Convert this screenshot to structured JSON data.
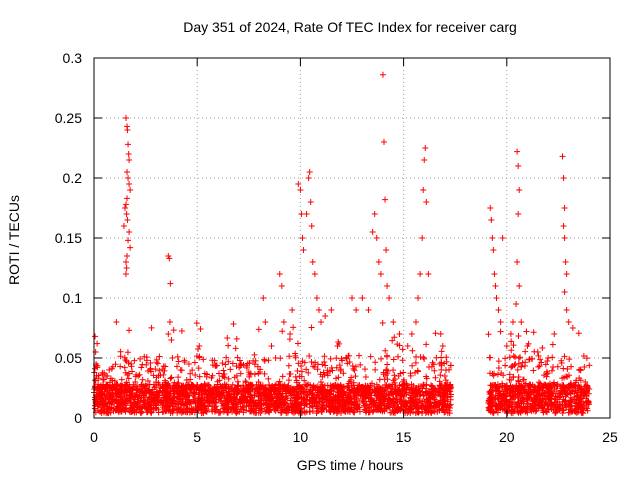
{
  "chart_data": {
    "type": "scatter",
    "title": "Day 351 of 2024, Rate Of TEC Index for receiver carg",
    "xlabel": "GPS time / hours",
    "ylabel": "ROTI / TECUs",
    "xlim": [
      0,
      25
    ],
    "ylim": [
      0,
      0.3
    ],
    "xticks": [
      0,
      5,
      10,
      15,
      20,
      25
    ],
    "xtick_labels": [
      "0",
      "5",
      "10",
      "15",
      "20",
      "25"
    ],
    "yticks": [
      0,
      0.05,
      0.1,
      0.15,
      0.2,
      0.25,
      0.3
    ],
    "ytick_labels": [
      "0",
      "0.05",
      "0.1",
      "0.15",
      "0.2",
      "0.25",
      "0.3"
    ],
    "grid": true,
    "marker": "+",
    "color": "#ff0000",
    "series": [
      {
        "name": "ROTI",
        "points": [
          [
            0.05,
            0.068
          ],
          [
            0.08,
            0.055
          ],
          [
            0.1,
            0.045
          ],
          [
            0.12,
            0.035
          ],
          [
            0.15,
            0.062
          ],
          [
            0.2,
            0.028
          ],
          [
            0.3,
            0.02
          ],
          [
            0.4,
            0.015
          ],
          [
            1.55,
            0.25
          ],
          [
            1.6,
            0.243
          ],
          [
            1.62,
            0.24
          ],
          [
            1.65,
            0.228
          ],
          [
            1.68,
            0.22
          ],
          [
            1.7,
            0.215
          ],
          [
            1.6,
            0.205
          ],
          [
            1.65,
            0.2
          ],
          [
            1.7,
            0.195
          ],
          [
            1.75,
            0.19
          ],
          [
            1.6,
            0.183
          ],
          [
            1.55,
            0.178
          ],
          [
            1.5,
            0.175
          ],
          [
            1.58,
            0.17
          ],
          [
            1.62,
            0.165
          ],
          [
            1.45,
            0.16
          ],
          [
            1.7,
            0.155
          ],
          [
            1.65,
            0.148
          ],
          [
            1.75,
            0.142
          ],
          [
            1.6,
            0.135
          ],
          [
            1.55,
            0.13
          ],
          [
            1.58,
            0.125
          ],
          [
            1.55,
            0.12
          ],
          [
            1.7,
            0.073
          ],
          [
            1.8,
            0.045
          ],
          [
            2.0,
            0.03
          ],
          [
            3.6,
            0.135
          ],
          [
            3.65,
            0.133
          ],
          [
            3.7,
            0.112
          ],
          [
            3.68,
            0.08
          ],
          [
            3.6,
            0.07
          ],
          [
            3.75,
            0.065
          ],
          [
            3.8,
            0.05
          ],
          [
            4.2,
            0.04
          ],
          [
            4.6,
            0.045
          ],
          [
            5.1,
            0.06
          ],
          [
            8.2,
            0.1
          ],
          [
            8.3,
            0.08
          ],
          [
            8.6,
            0.06
          ],
          [
            8.8,
            0.05
          ],
          [
            9.0,
            0.12
          ],
          [
            9.1,
            0.11
          ],
          [
            9.2,
            0.08
          ],
          [
            9.5,
            0.07
          ],
          [
            9.6,
            0.09
          ],
          [
            9.9,
            0.195
          ],
          [
            10.0,
            0.19
          ],
          [
            10.05,
            0.17
          ],
          [
            10.1,
            0.15
          ],
          [
            10.15,
            0.14
          ],
          [
            10.3,
            0.17
          ],
          [
            10.4,
            0.2
          ],
          [
            10.45,
            0.205
          ],
          [
            10.5,
            0.18
          ],
          [
            10.55,
            0.16
          ],
          [
            10.6,
            0.13
          ],
          [
            10.7,
            0.12
          ],
          [
            10.8,
            0.1
          ],
          [
            10.9,
            0.09
          ],
          [
            11.0,
            0.08
          ],
          [
            11.2,
            0.085
          ],
          [
            11.5,
            0.09
          ],
          [
            11.8,
            0.06
          ],
          [
            12.5,
            0.1
          ],
          [
            12.7,
            0.09
          ],
          [
            13.0,
            0.1
          ],
          [
            13.3,
            0.09
          ],
          [
            13.5,
            0.155
          ],
          [
            13.6,
            0.17
          ],
          [
            13.7,
            0.15
          ],
          [
            13.8,
            0.13
          ],
          [
            13.9,
            0.12
          ],
          [
            14.0,
            0.286
          ],
          [
            14.05,
            0.23
          ],
          [
            14.1,
            0.182
          ],
          [
            14.15,
            0.14
          ],
          [
            14.2,
            0.11
          ],
          [
            14.3,
            0.1
          ],
          [
            14.5,
            0.08
          ],
          [
            14.8,
            0.07
          ],
          [
            15.2,
            0.06
          ],
          [
            15.4,
            0.07
          ],
          [
            15.6,
            0.08
          ],
          [
            15.7,
            0.1
          ],
          [
            15.8,
            0.12
          ],
          [
            15.9,
            0.15
          ],
          [
            15.95,
            0.19
          ],
          [
            16.0,
            0.215
          ],
          [
            16.05,
            0.225
          ],
          [
            16.1,
            0.18
          ],
          [
            16.2,
            0.12
          ],
          [
            16.8,
            0.07
          ],
          [
            16.9,
            0.06
          ],
          [
            17.0,
            0.035
          ],
          [
            17.1,
            0.02
          ],
          [
            19.2,
            0.175
          ],
          [
            19.25,
            0.165
          ],
          [
            19.3,
            0.15
          ],
          [
            19.35,
            0.14
          ],
          [
            19.4,
            0.12
          ],
          [
            19.45,
            0.11
          ],
          [
            19.5,
            0.1
          ],
          [
            19.6,
            0.09
          ],
          [
            19.7,
            0.08
          ],
          [
            19.8,
            0.15
          ],
          [
            20.0,
            0.06
          ],
          [
            20.2,
            0.07
          ],
          [
            20.3,
            0.08
          ],
          [
            20.5,
            0.222
          ],
          [
            20.55,
            0.21
          ],
          [
            20.6,
            0.19
          ],
          [
            20.55,
            0.17
          ],
          [
            20.5,
            0.13
          ],
          [
            20.6,
            0.11
          ],
          [
            20.45,
            0.095
          ],
          [
            20.7,
            0.08
          ],
          [
            21.0,
            0.06
          ],
          [
            21.5,
            0.055
          ],
          [
            22.0,
            0.05
          ],
          [
            22.3,
            0.07
          ],
          [
            22.7,
            0.218
          ],
          [
            22.75,
            0.2
          ],
          [
            22.8,
            0.175
          ],
          [
            22.75,
            0.16
          ],
          [
            22.8,
            0.15
          ],
          [
            22.85,
            0.13
          ],
          [
            22.9,
            0.12
          ],
          [
            22.8,
            0.105
          ],
          [
            22.9,
            0.09
          ],
          [
            23.0,
            0.08
          ],
          [
            23.2,
            0.075
          ],
          [
            23.5,
            0.04
          ],
          [
            23.8,
            0.03
          ]
        ],
        "dense_band": {
          "note": "dense cluster of points near the baseline",
          "segments": [
            {
              "x_range": [
                0,
                17.3
              ],
              "y_typical_max": 0.03,
              "y_peak_max": 0.08
            },
            {
              "x_range": [
                19.1,
                24
              ],
              "y_typical_max": 0.03,
              "y_peak_max": 0.08
            }
          ]
        }
      }
    ]
  }
}
